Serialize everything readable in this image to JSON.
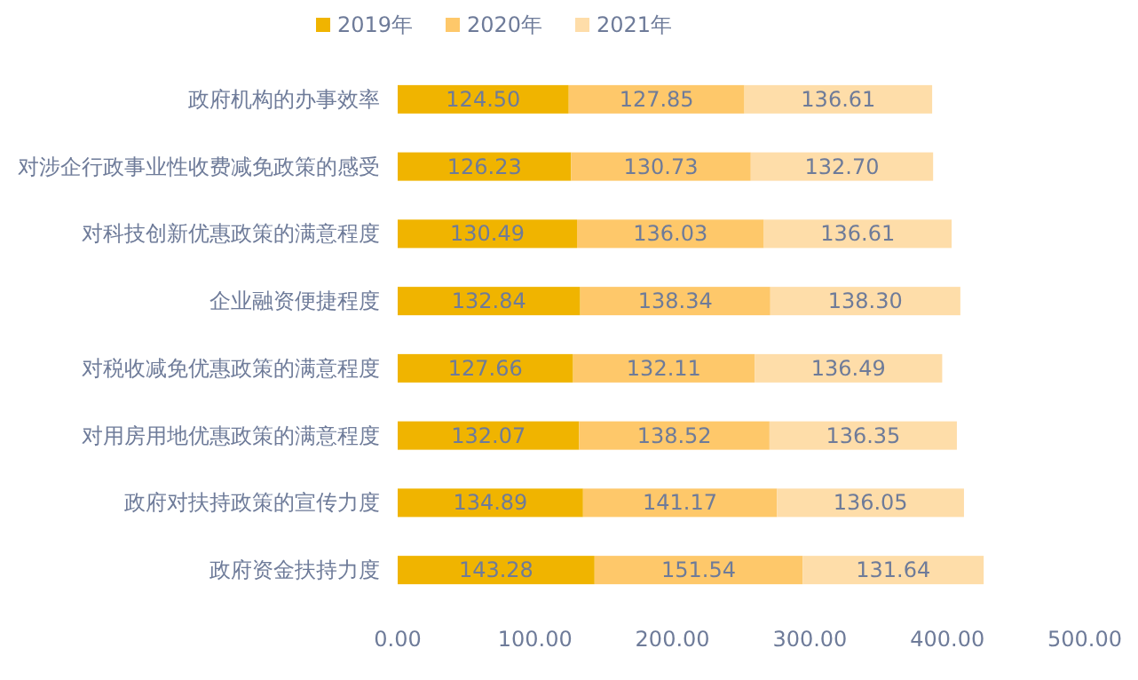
{
  "chart_data": {
    "type": "bar",
    "orientation": "horizontal",
    "stacked": true,
    "legend": "top",
    "grid": false,
    "categories": [
      "政府机构的办事效率",
      "对涉企行政事业性收费减免政策的感受",
      "对科技创新优惠政策的满意程度",
      "企业融资便捷程度",
      "对税收减免优惠政策的满意程度",
      "对用房用地优惠政策的满意程度",
      "政府对扶持政策的宣传力度",
      "政府资金扶持力度"
    ],
    "series": [
      {
        "name": "2019年",
        "color": "#f0b400",
        "values": [
          124.5,
          126.23,
          130.49,
          132.84,
          127.66,
          132.07,
          134.89,
          143.28
        ],
        "value_labels": [
          "124.50",
          "126.23",
          "130.49",
          "132.84",
          "127.66",
          "132.07",
          "134.89",
          "143.28"
        ]
      },
      {
        "name": "2020年",
        "color": "#fec86a",
        "values": [
          127.85,
          130.73,
          136.03,
          138.34,
          132.11,
          138.52,
          141.17,
          151.54
        ],
        "value_labels": [
          "127.85",
          "130.73",
          "136.03",
          "138.34",
          "132.11",
          "138.52",
          "141.17",
          "151.54"
        ]
      },
      {
        "name": "2021年",
        "color": "#fedda9",
        "values": [
          136.61,
          132.7,
          136.61,
          138.3,
          136.49,
          136.35,
          136.05,
          131.64
        ],
        "value_labels": [
          "136.61",
          "132.70",
          "136.61",
          "138.30",
          "136.49",
          "136.35",
          "136.05",
          "131.64"
        ]
      }
    ],
    "xlim": [
      0,
      500
    ],
    "xticks": [
      {
        "value": 0,
        "label": "0.00"
      },
      {
        "value": 100,
        "label": "100.00"
      },
      {
        "value": 200,
        "label": "200.00"
      },
      {
        "value": 300,
        "label": "300.00"
      },
      {
        "value": 400,
        "label": "400.00"
      },
      {
        "value": 500,
        "label": "500.00"
      }
    ]
  }
}
